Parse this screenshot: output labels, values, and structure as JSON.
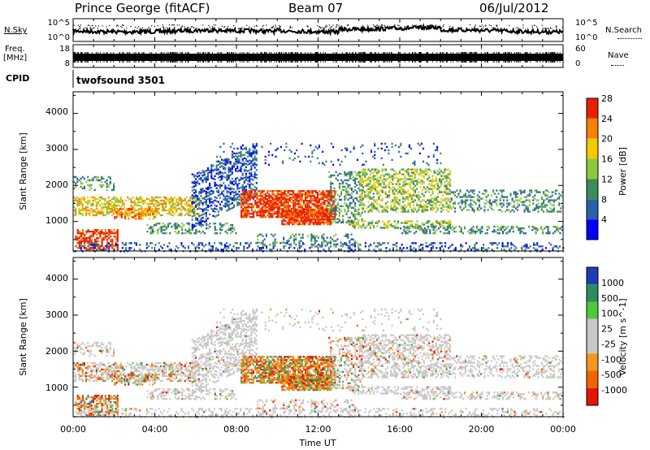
{
  "header": {
    "station": "Prince George (fitACF)",
    "beam": "Beam 07",
    "date": "06/Jul/2012"
  },
  "noise_panel": {
    "left_label": "N.Sky",
    "right_label": "N.Search",
    "left_ticks": [
      "10^5",
      "10^0"
    ],
    "right_ticks": [
      "10^5",
      "10^0"
    ]
  },
  "freq_panel": {
    "left_label_1": "Freq.",
    "left_label_2": "[MHz]",
    "right_label": "Nave",
    "left_ticks": [
      "18",
      "8"
    ],
    "right_ticks": [
      "60",
      "0"
    ]
  },
  "cpid": {
    "label": "CPID",
    "value": "twofsound 3501"
  },
  "chart_data": [
    {
      "type": "heatmap",
      "name": "power",
      "ylabel": "Slant Range [km]",
      "yticks": [
        "1000",
        "2000",
        "3000",
        "4000"
      ],
      "ylim": [
        180,
        4600
      ],
      "colorbar_label": "Power [dB]",
      "colorbar_ticks": [
        "4",
        "8",
        "12",
        "16",
        "20",
        "24",
        "28"
      ],
      "colors": [
        "#0000ff",
        "#2d5fa8",
        "#3c8c5a",
        "#8cc83c",
        "#f5c800",
        "#f58200",
        "#eb1e00"
      ],
      "background": "#ffffff"
    },
    {
      "type": "heatmap",
      "name": "velocity",
      "ylabel": "Slant Range [km]",
      "yticks": [
        "1000",
        "2000",
        "3000",
        "4000"
      ],
      "ylim": [
        180,
        4600
      ],
      "colorbar_label": "Velocity [m s^-1]",
      "colorbar_ticks": [
        "1000",
        "500",
        "100",
        "25",
        "-25",
        "-100",
        "-500",
        "-1000"
      ],
      "colors": [
        "#1e3cb4",
        "#2d8c64",
        "#50c83c",
        "#c8c8c8",
        "#c8c8c8",
        "#f5961e",
        "#f06400",
        "#e61400"
      ],
      "ground_scatter_color": "#c8c8c8",
      "background": "#ffffff"
    }
  ],
  "time_axis": {
    "xlabel": "Time UT",
    "ticks": [
      "00:00",
      "04:00",
      "08:00",
      "12:00",
      "16:00",
      "20:00",
      "00:00"
    ],
    "xlim": [
      0,
      24
    ]
  }
}
